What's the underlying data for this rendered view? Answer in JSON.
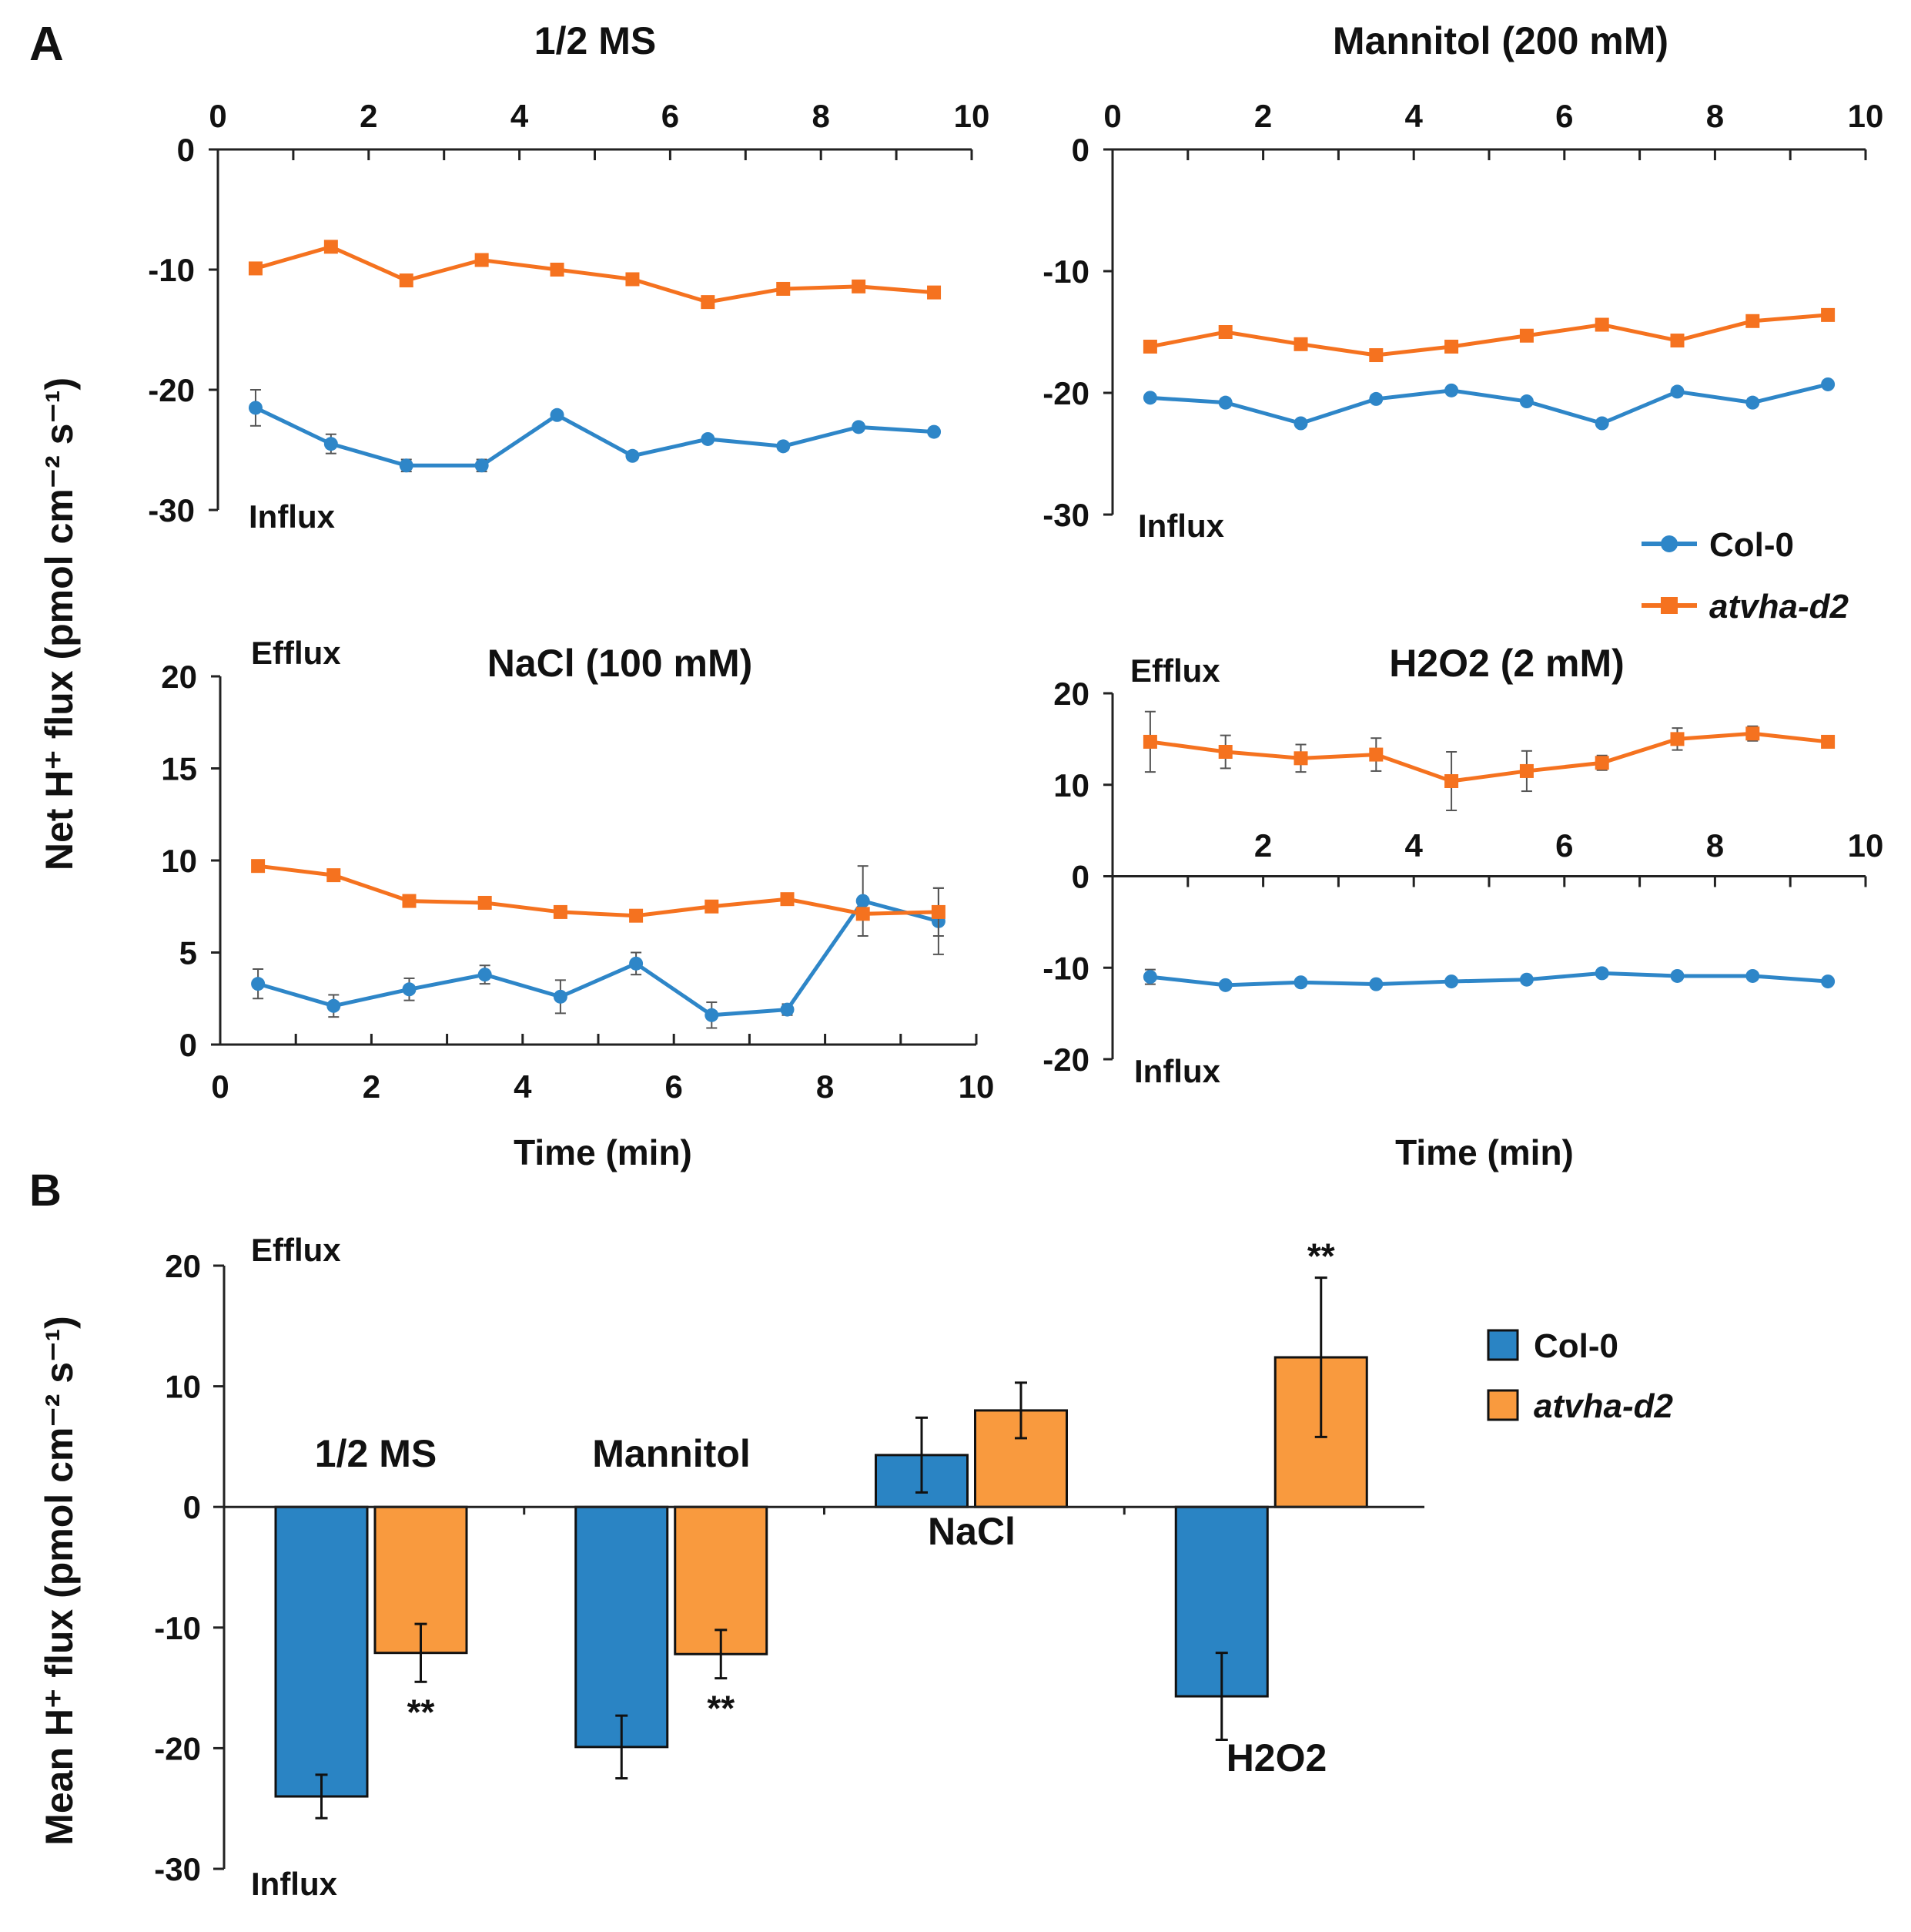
{
  "colors": {
    "col0": "#2e86c8",
    "atvha": "#f5721f",
    "col0_bar": "#2a84c4",
    "atvha_bar": "#f99a3e",
    "axis": "#222222"
  },
  "panel_labels": {
    "a": "A",
    "b": "B"
  },
  "legend": {
    "col0": "Col-0",
    "atvha": "atvha-d2"
  },
  "axis_titles": {
    "a_y": "Net H⁺ flux (pmol cm⁻² s⁻¹)",
    "a_x1": "Time (min)",
    "a_x2": "Time (min)",
    "b_y": "Mean H⁺ flux (pmol cm⁻² s⁻¹)"
  },
  "flux_labels": {
    "influx": "Influx",
    "efflux": "Efflux"
  },
  "chart_data": [
    {
      "type": "line",
      "title": "1/2 MS",
      "xlabel": "",
      "ylabel": "Net H⁺ flux (pmol cm⁻² s⁻¹)",
      "xlim": [
        0,
        10
      ],
      "ylim": [
        -30,
        0
      ],
      "xticks": [
        0,
        2,
        4,
        6,
        8,
        10
      ],
      "yticks": [
        0,
        -10,
        -20,
        -30
      ],
      "x": [
        0.5,
        1.5,
        2.5,
        3.5,
        4.5,
        5.5,
        6.5,
        7.5,
        8.5,
        9.5
      ],
      "series": [
        {
          "name": "Col-0",
          "values": [
            -21.5,
            -24.5,
            -26.3,
            -26.3,
            -22.1,
            -25.5,
            -24.1,
            -24.7,
            -23.1,
            -23.5
          ],
          "errors": [
            1.5,
            0.8,
            0.5,
            0.5,
            0.3,
            0.3,
            0.3,
            0.3,
            0.3,
            0.3
          ]
        },
        {
          "name": "atvha-d2",
          "values": [
            -9.9,
            -8.1,
            -10.9,
            -9.2,
            -10.0,
            -10.8,
            -12.7,
            -11.6,
            -11.4,
            -11.9
          ],
          "errors": [
            0.3,
            0.3,
            0.3,
            0.3,
            0.3,
            0.3,
            0.3,
            0.3,
            0.3,
            0.3
          ]
        }
      ],
      "annotations": [
        "Influx"
      ]
    },
    {
      "type": "line",
      "title": "Mannitol (200 mM)",
      "xlabel": "",
      "ylabel": "",
      "xlim": [
        0,
        10
      ],
      "ylim": [
        -30,
        0
      ],
      "xticks": [
        0,
        2,
        4,
        6,
        8,
        10
      ],
      "yticks": [
        0,
        -10,
        -20,
        -30
      ],
      "x": [
        0.5,
        1.5,
        2.5,
        3.5,
        4.5,
        5.5,
        6.5,
        7.5,
        8.5,
        9.5
      ],
      "series": [
        {
          "name": "Col-0",
          "values": [
            -20.4,
            -20.8,
            -22.5,
            -20.5,
            -19.8,
            -20.7,
            -22.5,
            -19.9,
            -20.8,
            -19.3
          ],
          "errors": [
            0.3,
            0.3,
            0.3,
            0.3,
            0.3,
            0.3,
            0.3,
            0.3,
            0.3,
            0.3
          ]
        },
        {
          "name": "atvha-d2",
          "values": [
            -16.2,
            -15.0,
            -16.0,
            -16.9,
            -16.2,
            -15.3,
            -14.4,
            -15.7,
            -14.1,
            -13.6
          ],
          "errors": [
            0.3,
            0.3,
            0.3,
            0.3,
            0.3,
            0.3,
            0.3,
            0.3,
            0.3,
            0.3
          ]
        }
      ],
      "annotations": [
        "Influx"
      ],
      "legend": "bottom-right"
    },
    {
      "type": "line",
      "title": "NaCl (100 mM)",
      "xlabel": "Time (min)",
      "ylabel": "",
      "xlim": [
        0,
        10
      ],
      "ylim": [
        0,
        20
      ],
      "xticks": [
        0,
        2,
        4,
        6,
        8,
        10
      ],
      "yticks": [
        0,
        5,
        10,
        15,
        20
      ],
      "x": [
        0.5,
        1.5,
        2.5,
        3.5,
        4.5,
        5.5,
        6.5,
        7.5,
        8.5,
        9.5
      ],
      "series": [
        {
          "name": "Col-0",
          "values": [
            3.3,
            2.1,
            3.0,
            3.8,
            2.6,
            4.4,
            1.6,
            1.9,
            7.8,
            6.7
          ],
          "errors": [
            0.8,
            0.6,
            0.6,
            0.5,
            0.9,
            0.6,
            0.7,
            0.3,
            1.9,
            1.8
          ]
        },
        {
          "name": "atvha-d2",
          "values": [
            9.7,
            9.2,
            7.8,
            7.7,
            7.2,
            7.0,
            7.5,
            7.9,
            7.1,
            7.2
          ],
          "errors": [
            0.2,
            0.2,
            0.2,
            0.2,
            0.2,
            0.2,
            0.2,
            0.2,
            0.2,
            1.3
          ]
        }
      ],
      "annotations": [
        "Efflux"
      ]
    },
    {
      "type": "line",
      "title": "H2O2 (2 mM)",
      "xlabel": "Time (min)",
      "ylabel": "",
      "xlim": [
        0,
        10
      ],
      "ylim": [
        -20,
        20
      ],
      "xticks": [
        2,
        4,
        6,
        8,
        10
      ],
      "yticks": [
        20,
        10,
        0,
        -10,
        -20
      ],
      "x": [
        0.5,
        1.5,
        2.5,
        3.5,
        4.5,
        5.5,
        6.5,
        7.5,
        8.5,
        9.5
      ],
      "series": [
        {
          "name": "Col-0",
          "values": [
            -11.0,
            -11.9,
            -11.6,
            -11.8,
            -11.5,
            -11.3,
            -10.6,
            -10.9,
            -10.9,
            -11.5
          ],
          "errors": [
            0.8,
            0.3,
            0.3,
            0.3,
            0.3,
            0.3,
            0.3,
            0.3,
            0.3,
            0.3
          ]
        },
        {
          "name": "atvha-d2",
          "values": [
            14.7,
            13.6,
            12.9,
            13.3,
            10.4,
            11.5,
            12.4,
            15.0,
            15.6,
            14.7
          ],
          "errors": [
            3.3,
            1.8,
            1.5,
            1.8,
            3.2,
            2.2,
            0.8,
            1.2,
            0.8,
            0.5
          ]
        }
      ],
      "annotations": [
        "Efflux",
        "Influx"
      ]
    },
    {
      "type": "bar",
      "title": "",
      "xlabel": "",
      "ylabel": "Mean H⁺ flux (pmol cm⁻² s⁻¹)",
      "ylim": [
        -30,
        20
      ],
      "yticks": [
        20,
        10,
        0,
        -10,
        -20,
        -30
      ],
      "categories": [
        "1/2 MS",
        "Mannitol",
        "NaCl",
        "H2O2"
      ],
      "series": [
        {
          "name": "Col-0",
          "values": [
            -24.0,
            -19.9,
            4.3,
            -15.7
          ],
          "errors": [
            1.8,
            2.6,
            3.1,
            3.6
          ],
          "significance": [
            "",
            "",
            "",
            ""
          ]
        },
        {
          "name": "atvha-d2",
          "values": [
            -12.1,
            -12.2,
            8.0,
            12.4
          ],
          "errors": [
            2.4,
            2.0,
            2.3,
            6.6
          ],
          "significance": [
            "**",
            "**",
            "",
            "**"
          ]
        }
      ],
      "annotations": [
        "Efflux",
        "Influx"
      ],
      "legend": "right"
    }
  ]
}
